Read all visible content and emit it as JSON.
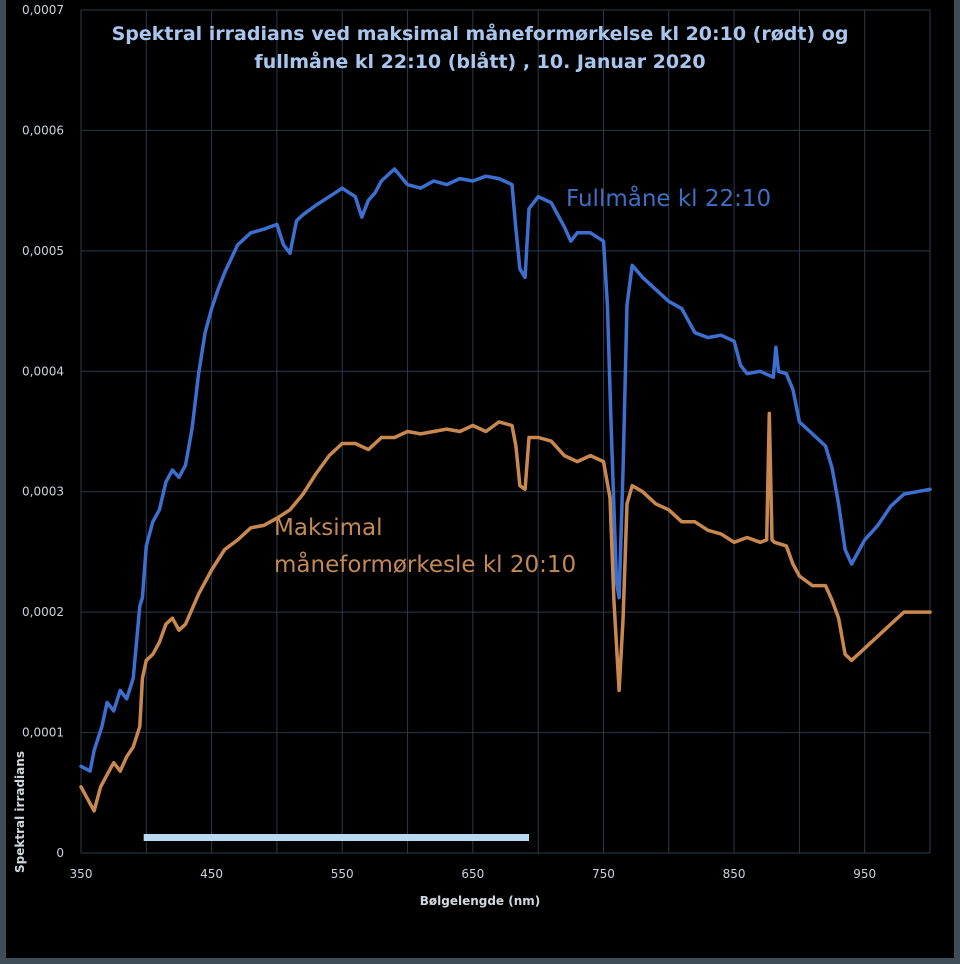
{
  "chart_data": {
    "type": "line",
    "title_line1": "Spektral irradians ved maksimal måneformørkelse kl 20:10 (rødt)  og",
    "title_line2": "fullmåne kl 22:10 (blått) , 10. Januar 2020",
    "xlabel": "Bølgelengde (nm)",
    "ylabel": "Spektral irradians",
    "xlim": [
      350,
      1000
    ],
    "ylim": [
      0,
      0.0007
    ],
    "x_ticks": [
      350,
      450,
      550,
      650,
      750,
      850,
      950
    ],
    "x_tick_labels": [
      "350",
      "450",
      "550",
      "650",
      "750",
      "850",
      "950"
    ],
    "y_ticks": [
      0,
      0.0001,
      0.0002,
      0.0003,
      0.0004,
      0.0005,
      0.0006,
      0.0007
    ],
    "y_tick_labels": [
      "0",
      "0,0001",
      "0,0002",
      "0,0003",
      "0,0004",
      "0,0005",
      "0,0006",
      "0,0007"
    ],
    "grid": true,
    "series": [
      {
        "name": "Fullmåne kl 22:10",
        "color": "#3d6fd0",
        "x": [
          350,
          357,
          360,
          366,
          370,
          375,
          380,
          385,
          390,
          395,
          397,
          400,
          405,
          410,
          415,
          420,
          425,
          430,
          435,
          440,
          445,
          450,
          455,
          460,
          470,
          480,
          490,
          500,
          505,
          510,
          515,
          520,
          530,
          540,
          550,
          560,
          565,
          570,
          575,
          580,
          585,
          590,
          600,
          610,
          620,
          630,
          640,
          650,
          660,
          670,
          680,
          683,
          686,
          690,
          693,
          700,
          710,
          720,
          725,
          730,
          740,
          750,
          753,
          756,
          760,
          762,
          765,
          768,
          772,
          780,
          790,
          800,
          810,
          820,
          830,
          840,
          850,
          855,
          860,
          870,
          880,
          882,
          884,
          890,
          895,
          900,
          910,
          920,
          925,
          930,
          935,
          940,
          950,
          960,
          970,
          980,
          990,
          1000
        ],
        "values": [
          7.2e-05,
          6.8e-05,
          8.5e-05,
          0.000105,
          0.000125,
          0.000118,
          0.000135,
          0.000128,
          0.000145,
          0.000205,
          0.000212,
          0.000255,
          0.000275,
          0.000285,
          0.000308,
          0.000318,
          0.000312,
          0.000322,
          0.000352,
          0.000398,
          0.000432,
          0.000452,
          0.000468,
          0.000482,
          0.000505,
          0.000515,
          0.000518,
          0.000522,
          0.000505,
          0.000498,
          0.000525,
          0.00053,
          0.000538,
          0.000545,
          0.000552,
          0.000545,
          0.000528,
          0.000542,
          0.000548,
          0.000558,
          0.000563,
          0.000568,
          0.000555,
          0.000552,
          0.000558,
          0.000555,
          0.00056,
          0.000558,
          0.000562,
          0.00056,
          0.000555,
          0.000518,
          0.000485,
          0.000478,
          0.000535,
          0.000545,
          0.00054,
          0.00052,
          0.000508,
          0.000515,
          0.000515,
          0.000508,
          0.000455,
          0.00035,
          0.000225,
          0.000212,
          0.00032,
          0.000455,
          0.000488,
          0.000478,
          0.000468,
          0.000458,
          0.000452,
          0.000432,
          0.000428,
          0.00043,
          0.000425,
          0.000405,
          0.000398,
          0.0004,
          0.000395,
          0.00042,
          0.0004,
          0.000398,
          0.000385,
          0.000358,
          0.000348,
          0.000338,
          0.00032,
          0.00029,
          0.000252,
          0.00024,
          0.00026,
          0.000272,
          0.000288,
          0.000298,
          0.0003,
          0.000302
        ]
      },
      {
        "name": "Maksimal måneformørkelse kl 20:10",
        "color": "#c88850",
        "x": [
          350,
          355,
          360,
          365,
          370,
          375,
          380,
          385,
          390,
          395,
          397,
          400,
          405,
          410,
          415,
          420,
          425,
          430,
          440,
          450,
          460,
          470,
          480,
          490,
          500,
          510,
          520,
          530,
          540,
          550,
          560,
          570,
          580,
          590,
          600,
          610,
          620,
          630,
          640,
          650,
          660,
          670,
          680,
          683,
          686,
          690,
          693,
          700,
          710,
          720,
          730,
          740,
          750,
          755,
          758,
          762,
          765,
          768,
          772,
          780,
          790,
          800,
          810,
          820,
          830,
          840,
          850,
          860,
          870,
          875,
          877,
          879,
          881,
          890,
          895,
          900,
          910,
          920,
          925,
          930,
          935,
          940,
          950,
          960,
          970,
          980,
          990,
          1000
        ],
        "values": [
          5.5e-05,
          4.5e-05,
          3.5e-05,
          5.5e-05,
          6.5e-05,
          7.5e-05,
          6.8e-05,
          8e-05,
          8.8e-05,
          0.000105,
          0.000145,
          0.00016,
          0.000165,
          0.000175,
          0.00019,
          0.000195,
          0.000185,
          0.00019,
          0.000215,
          0.000235,
          0.000252,
          0.00026,
          0.00027,
          0.000272,
          0.000278,
          0.000285,
          0.000298,
          0.000315,
          0.00033,
          0.00034,
          0.00034,
          0.000335,
          0.000345,
          0.000345,
          0.00035,
          0.000348,
          0.00035,
          0.000352,
          0.00035,
          0.000355,
          0.00035,
          0.000358,
          0.000355,
          0.000338,
          0.000305,
          0.000302,
          0.000345,
          0.000345,
          0.000342,
          0.00033,
          0.000325,
          0.00033,
          0.000325,
          0.000295,
          0.00021,
          0.000135,
          0.000195,
          0.00029,
          0.000305,
          0.0003,
          0.00029,
          0.000285,
          0.000275,
          0.000275,
          0.000268,
          0.000265,
          0.000258,
          0.000262,
          0.000258,
          0.00026,
          0.000365,
          0.00026,
          0.000258,
          0.000255,
          0.00024,
          0.00023,
          0.000222,
          0.000222,
          0.00021,
          0.000195,
          0.000165,
          0.00016,
          0.00017,
          0.00018,
          0.00019,
          0.0002,
          0.0002,
          0.0002
        ]
      }
    ],
    "annotations": {
      "blue_label": "Fullmåne kl 22:10",
      "orange_label_line1": "Maksimal",
      "orange_label_line2": "måneformørkesle kl 20:10"
    },
    "reference_bar": {
      "x_start": 398,
      "x_end": 693,
      "color": "#b9d8f2"
    }
  }
}
